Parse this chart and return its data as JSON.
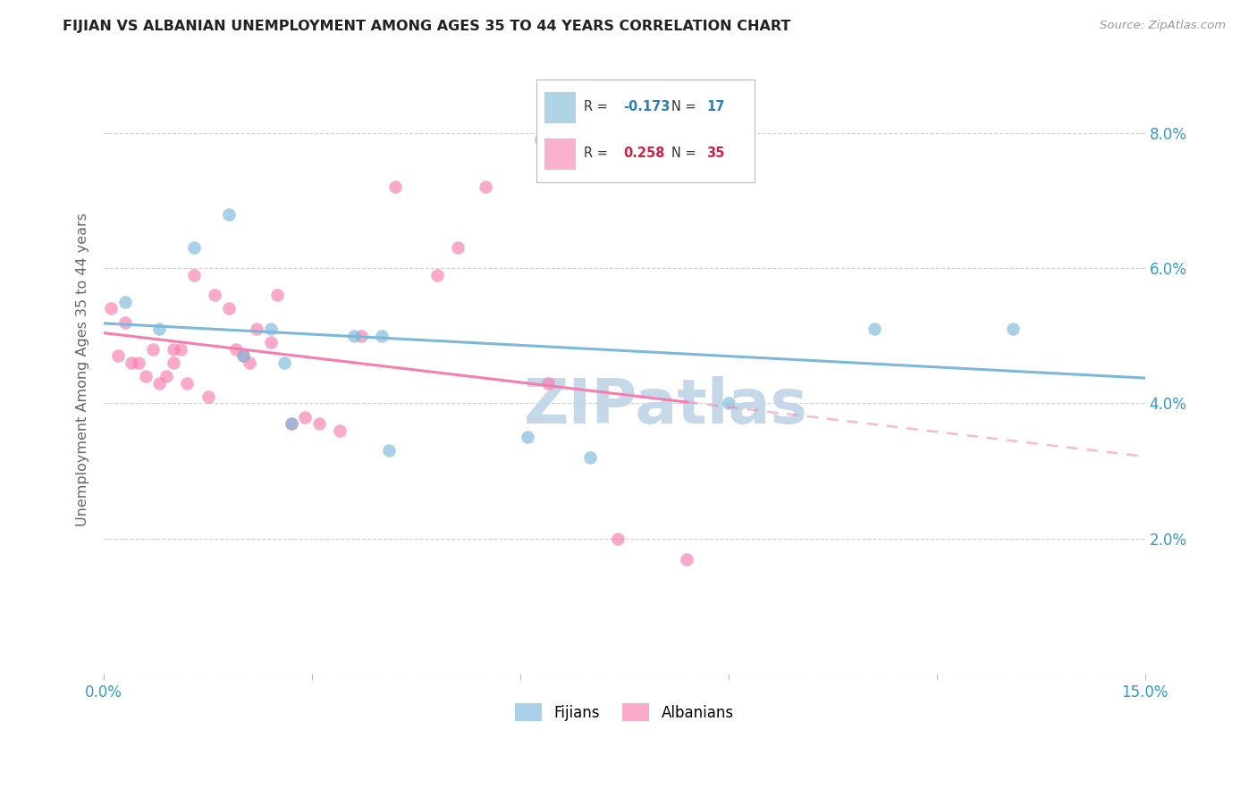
{
  "title": "FIJIAN VS ALBANIAN UNEMPLOYMENT AMONG AGES 35 TO 44 YEARS CORRELATION CHART",
  "source": "Source: ZipAtlas.com",
  "ylabel": "Unemployment Among Ages 35 to 44 years",
  "xlim": [
    0.0,
    0.15
  ],
  "ylim": [
    0.0,
    0.09
  ],
  "xticks": [
    0.0,
    0.03,
    0.06,
    0.09,
    0.12,
    0.15
  ],
  "xtick_labels": [
    "0.0%",
    "",
    "",
    "",
    "",
    "15.0%"
  ],
  "yticks": [
    0.0,
    0.02,
    0.04,
    0.06,
    0.08
  ],
  "ytick_right_labels": [
    "",
    "2.0%",
    "4.0%",
    "6.0%",
    "8.0%"
  ],
  "legend_fijian_R": "-0.173",
  "legend_fijian_N": "17",
  "legend_albanian_R": "0.258",
  "legend_albanian_N": "35",
  "fijian_color": "#7bb8d9",
  "albanian_color": "#f77db0",
  "fijian_x": [
    0.003,
    0.008,
    0.013,
    0.018,
    0.02,
    0.024,
    0.026,
    0.027,
    0.036,
    0.04,
    0.041,
    0.061,
    0.063,
    0.07,
    0.09,
    0.111,
    0.131
  ],
  "fijian_y": [
    0.055,
    0.051,
    0.063,
    0.068,
    0.047,
    0.051,
    0.046,
    0.037,
    0.05,
    0.05,
    0.033,
    0.035,
    0.079,
    0.032,
    0.04,
    0.051,
    0.051
  ],
  "albanian_x": [
    0.001,
    0.002,
    0.003,
    0.004,
    0.005,
    0.006,
    0.007,
    0.008,
    0.009,
    0.01,
    0.01,
    0.011,
    0.012,
    0.013,
    0.015,
    0.016,
    0.018,
    0.019,
    0.02,
    0.021,
    0.022,
    0.024,
    0.025,
    0.027,
    0.029,
    0.031,
    0.034,
    0.037,
    0.042,
    0.048,
    0.051,
    0.055,
    0.064,
    0.074,
    0.084
  ],
  "albanian_y": [
    0.054,
    0.047,
    0.052,
    0.046,
    0.046,
    0.044,
    0.048,
    0.043,
    0.044,
    0.048,
    0.046,
    0.048,
    0.043,
    0.059,
    0.041,
    0.056,
    0.054,
    0.048,
    0.047,
    0.046,
    0.051,
    0.049,
    0.056,
    0.037,
    0.038,
    0.037,
    0.036,
    0.05,
    0.072,
    0.059,
    0.063,
    0.072,
    0.043,
    0.02,
    0.017
  ],
  "background_color": "#ffffff",
  "grid_color": "#d0d0d0",
  "watermark_color": "#c5d8e8"
}
